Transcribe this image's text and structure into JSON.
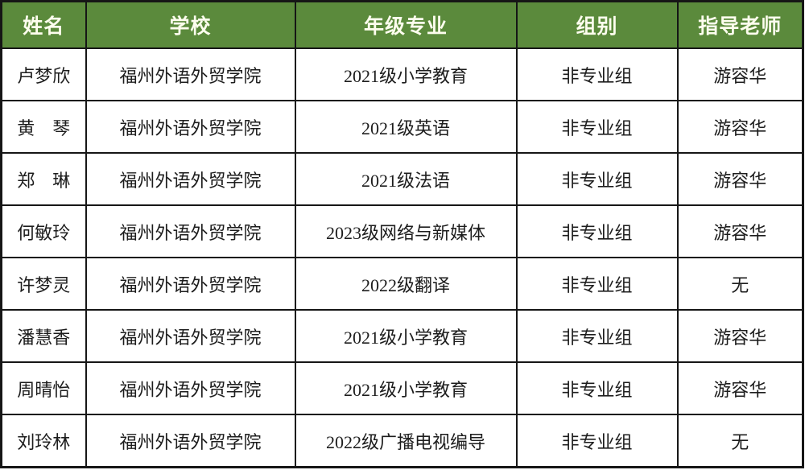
{
  "table": {
    "headers": [
      "姓名",
      "学校",
      "年级专业",
      "组别",
      "指导老师"
    ],
    "rows": [
      {
        "name": "卢梦欣",
        "school": "福州外语外贸学院",
        "grade_major": "2021级小学教育",
        "group": "非专业组",
        "teacher": "游容华"
      },
      {
        "name": "黄　琴",
        "school": "福州外语外贸学院",
        "grade_major": "2021级英语",
        "group": "非专业组",
        "teacher": "游容华"
      },
      {
        "name": "郑　琳",
        "school": "福州外语外贸学院",
        "grade_major": "2021级法语",
        "group": "非专业组",
        "teacher": "游容华"
      },
      {
        "name": "何敏玲",
        "school": "福州外语外贸学院",
        "grade_major": "2023级网络与新媒体",
        "group": "非专业组",
        "teacher": "游容华"
      },
      {
        "name": "许梦灵",
        "school": "福州外语外贸学院",
        "grade_major": "2022级翻译",
        "group": "非专业组",
        "teacher": "无"
      },
      {
        "name": "潘慧香",
        "school": "福州外语外贸学院",
        "grade_major": "2021级小学教育",
        "group": "非专业组",
        "teacher": "游容华"
      },
      {
        "name": "周晴怡",
        "school": "福州外语外贸学院",
        "grade_major": "2021级小学教育",
        "group": "非专业组",
        "teacher": "游容华"
      },
      {
        "name": "刘玲林",
        "school": "福州外语外贸学院",
        "grade_major": "2022级广播电视编导",
        "group": "非专业组",
        "teacher": "无"
      }
    ]
  },
  "colors": {
    "header_bg": "#5b8a3c",
    "header_text": "#fdfdee",
    "border": "#161616",
    "body_text": "#1d1d1d",
    "page_bg": "#ffffff"
  }
}
